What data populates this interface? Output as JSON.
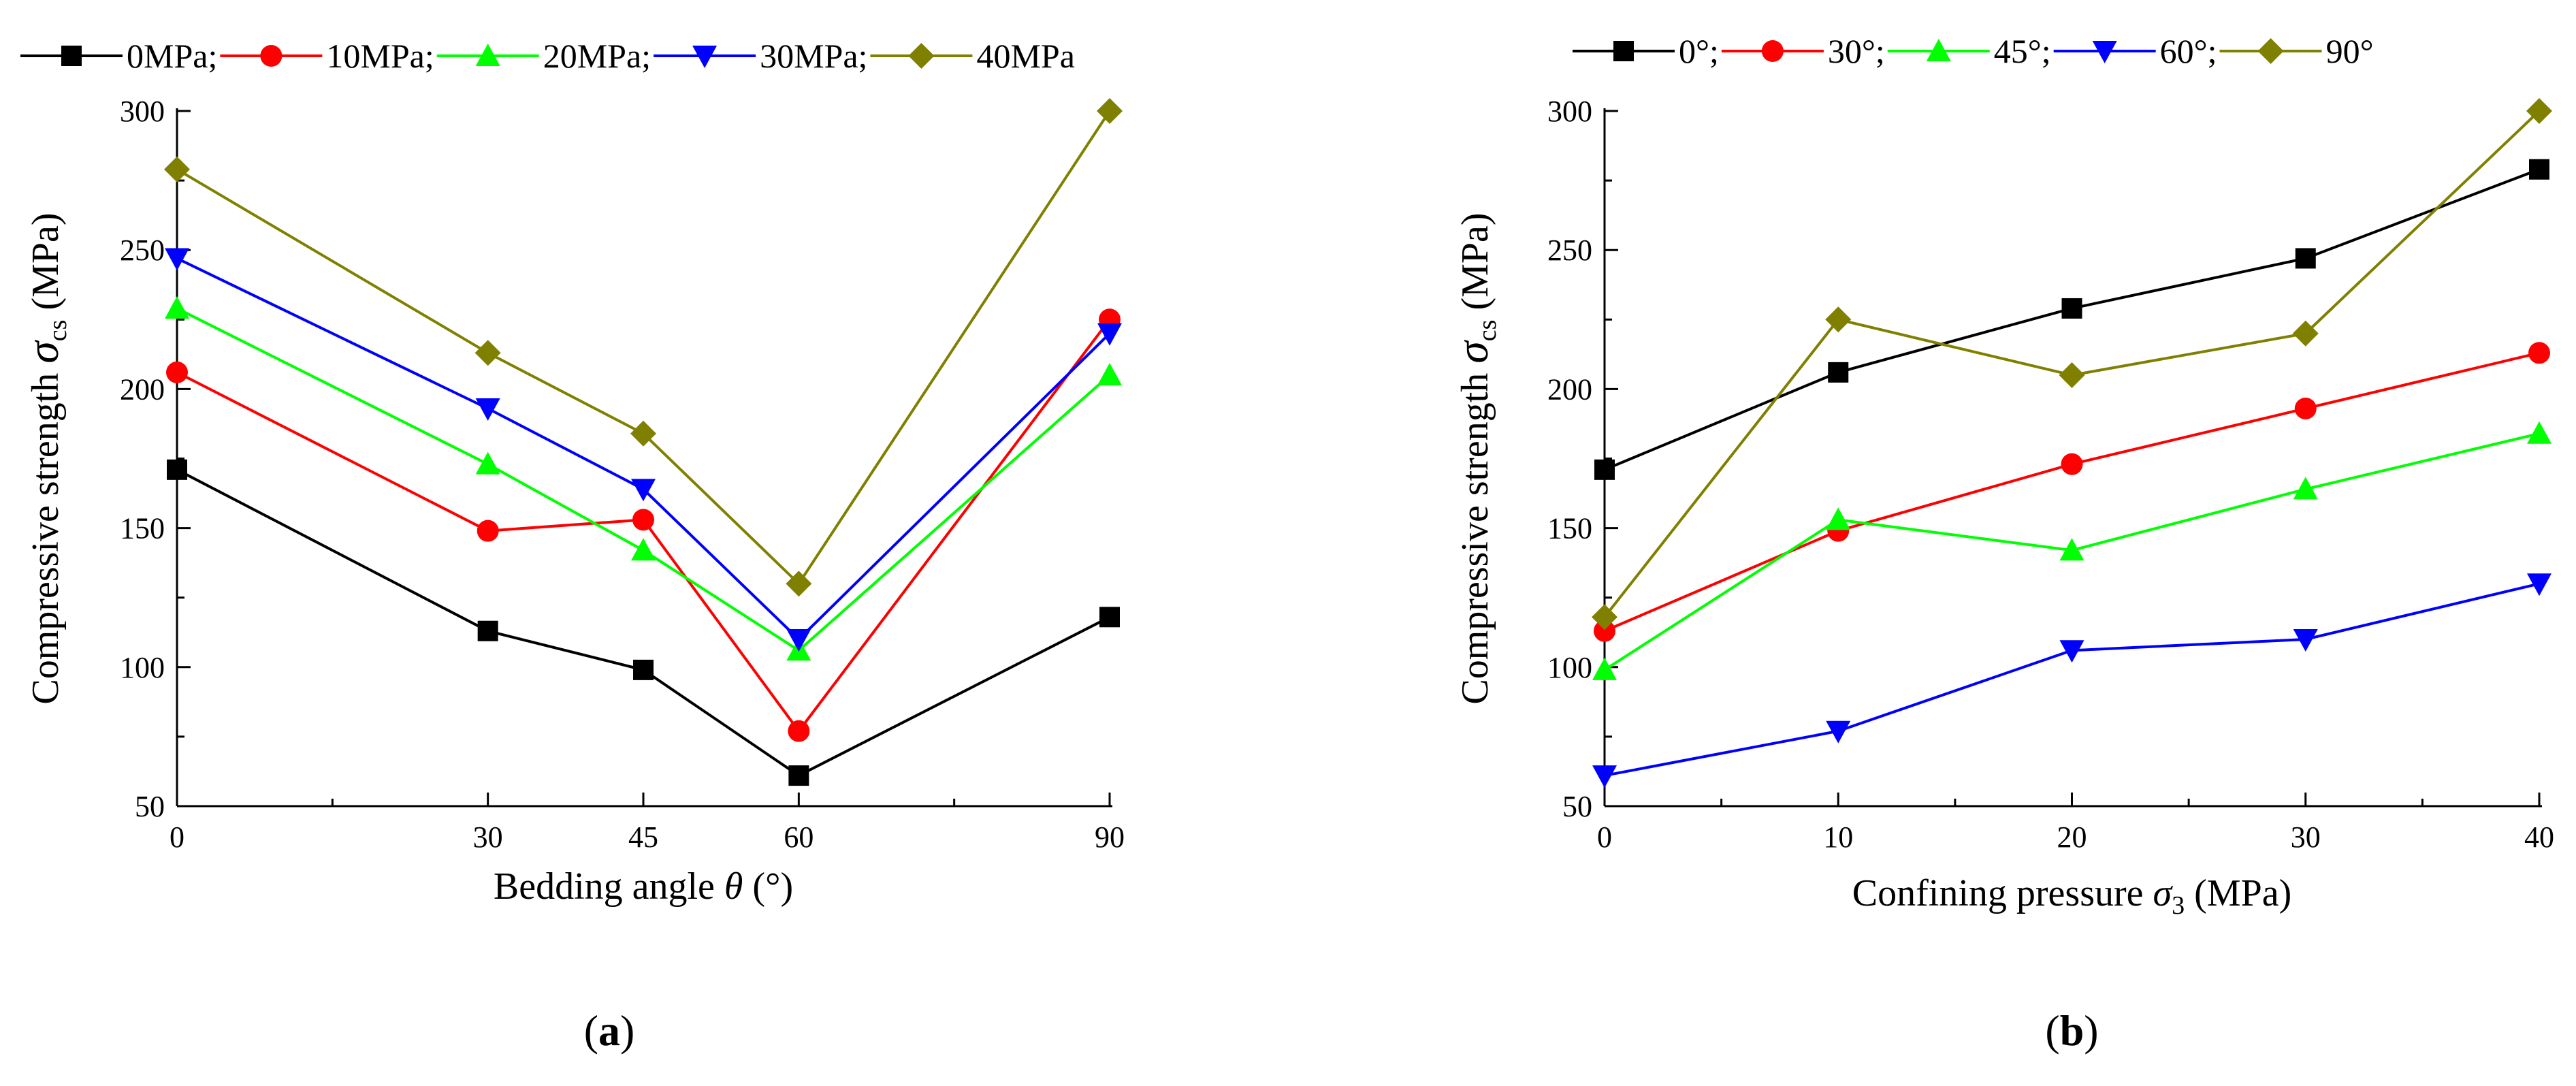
{
  "chart_data": [
    {
      "type": "line",
      "panel_label": {
        "open": "(",
        "letter": "a",
        "close": ")"
      },
      "title": "",
      "xlabel": {
        "prefix": "Bedding angle ",
        "symbol": "θ",
        "suffix": " (°)"
      },
      "ylabel": {
        "prefix": "Compressive strength ",
        "symbol": "σ",
        "subscript": "cs",
        "suffix": " (MPa)"
      },
      "x": [
        0,
        30,
        45,
        60,
        90
      ],
      "xticks": [
        "0",
        "30",
        "45",
        "60",
        "90"
      ],
      "xlim": [
        0,
        90
      ],
      "ylim": [
        50,
        300
      ],
      "yticks": [
        "50",
        "100",
        "150",
        "200",
        "250",
        "300"
      ],
      "grid": false,
      "legend_position": "top",
      "series": [
        {
          "name": "0MPa;",
          "color": "#000000",
          "marker": "square",
          "values": [
            171,
            113,
            99,
            61,
            118
          ]
        },
        {
          "name": "10MPa;",
          "color": "#ff0000",
          "marker": "circle",
          "values": [
            206,
            149,
            153,
            77,
            225
          ]
        },
        {
          "name": "20MPa;",
          "color": "#00ff00",
          "marker": "triangle-up",
          "values": [
            229,
            173,
            142,
            106,
            205
          ]
        },
        {
          "name": "30MPa;",
          "color": "#0000ff",
          "marker": "triangle-down",
          "values": [
            247,
            193,
            164,
            110,
            220
          ]
        },
        {
          "name": "40MPa",
          "color": "#808000",
          "marker": "diamond",
          "values": [
            279,
            213,
            184,
            130,
            300
          ]
        }
      ]
    },
    {
      "type": "line",
      "panel_label": {
        "open": "(",
        "letter": "b",
        "close": ")"
      },
      "title": "",
      "xlabel": {
        "prefix": "Confining pressure ",
        "symbol": "σ",
        "subscript": "3",
        "suffix": " (MPa)"
      },
      "ylabel": {
        "prefix": "Compressive strength ",
        "symbol": "σ",
        "subscript": "cs",
        "suffix": " (MPa)"
      },
      "x": [
        0,
        10,
        20,
        30,
        40
      ],
      "xticks": [
        "0",
        "10",
        "20",
        "30",
        "40"
      ],
      "xlim": [
        0,
        40
      ],
      "ylim": [
        50,
        300
      ],
      "yticks": [
        "50",
        "100",
        "150",
        "200",
        "250",
        "300"
      ],
      "grid": false,
      "legend_position": "top",
      "series": [
        {
          "name": "0°;",
          "color": "#000000",
          "marker": "square",
          "values": [
            171,
            206,
            229,
            247,
            279
          ]
        },
        {
          "name": "30°;",
          "color": "#ff0000",
          "marker": "circle",
          "values": [
            113,
            149,
            173,
            193,
            213
          ]
        },
        {
          "name": "45°;",
          "color": "#00ff00",
          "marker": "triangle-up",
          "values": [
            99,
            153,
            142,
            164,
            184
          ]
        },
        {
          "name": "60°;",
          "color": "#0000ff",
          "marker": "triangle-down",
          "values": [
            61,
            77,
            106,
            110,
            130
          ]
        },
        {
          "name": "90°",
          "color": "#808000",
          "marker": "diamond",
          "values": [
            118,
            225,
            205,
            220,
            300
          ]
        }
      ]
    }
  ]
}
